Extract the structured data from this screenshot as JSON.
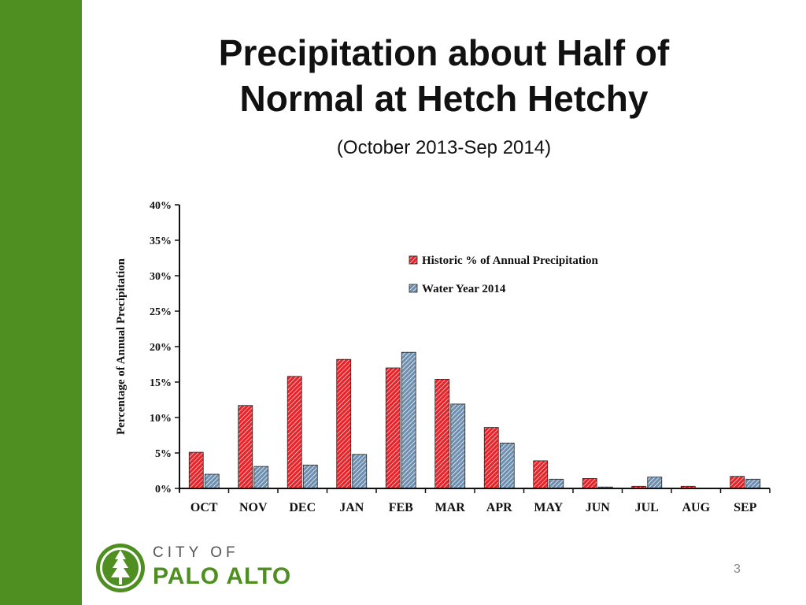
{
  "slide": {
    "title_line1": "Precipitation about Half of",
    "title_line2": "Normal at Hetch Hetchy",
    "subtitle": "(October 2013-Sep 2014)",
    "page_number": "3",
    "logo": {
      "city_text": "CITY OF",
      "name_text": "PALO ALTO",
      "icon": "redwood-tree-icon"
    }
  },
  "colors": {
    "sidebar": "#4f8f22",
    "historic": "#e8242a",
    "water_year": "#6f8fb0",
    "logo_green": "#4f8f22"
  },
  "chart_data": {
    "type": "bar",
    "ylabel": "Percentage of Annual Precipitation",
    "ylim": [
      0,
      40
    ],
    "ytick_labels": [
      "0%",
      "5%",
      "10%",
      "15%",
      "20%",
      "25%",
      "30%",
      "35%",
      "40%"
    ],
    "categories": [
      "OCT",
      "NOV",
      "DEC",
      "JAN",
      "FEB",
      "MAR",
      "APR",
      "MAY",
      "JUN",
      "JUL",
      "AUG",
      "SEP"
    ],
    "series": [
      {
        "name": "Historic % of Annual Precipitation",
        "values": [
          5.1,
          11.7,
          15.8,
          18.2,
          17.0,
          15.4,
          8.6,
          3.9,
          1.4,
          0.3,
          0.3,
          1.7
        ]
      },
      {
        "name": "Water Year 2014",
        "values": [
          2.0,
          3.1,
          3.3,
          4.8,
          19.2,
          11.9,
          6.4,
          1.3,
          0.2,
          1.6,
          0.0,
          1.3
        ]
      }
    ],
    "legend_position": "top-right",
    "grid": false
  }
}
